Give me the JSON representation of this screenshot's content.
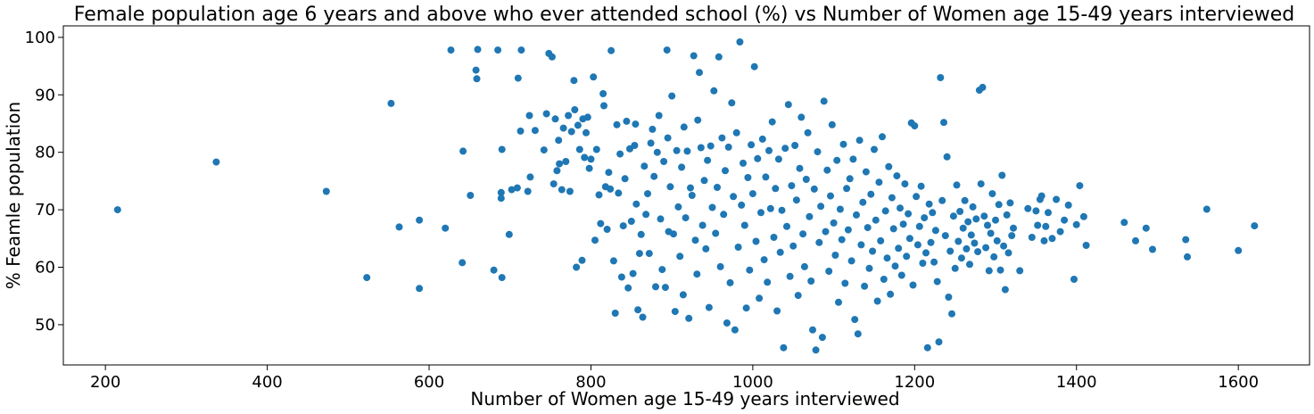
{
  "chart_data": {
    "type": "scatter",
    "title": "Female population age 6 years and above who ever attended school (%) vs Number of Women age 15-49 years interviewed",
    "xlabel": "Number of Women age 15-49 years interviewed",
    "ylabel": "% Feamle population",
    "xlim": [
      148,
      1688
    ],
    "ylim": [
      43,
      102
    ],
    "xticks": [
      200,
      400,
      600,
      800,
      1000,
      1200,
      1400,
      1600
    ],
    "yticks": [
      50,
      60,
      70,
      80,
      90,
      100
    ],
    "grid": false,
    "color": "#1f77b4",
    "points": [
      [
        215,
        70
      ],
      [
        337,
        78.3
      ],
      [
        473,
        73.2
      ],
      [
        523,
        58.2
      ],
      [
        553,
        88.5
      ],
      [
        563,
        67
      ],
      [
        588,
        56.3
      ],
      [
        588,
        68.2
      ],
      [
        620,
        66.8
      ],
      [
        627,
        97.8
      ],
      [
        641,
        60.8
      ],
      [
        642,
        80.2
      ],
      [
        651,
        72.5
      ],
      [
        658,
        94.3
      ],
      [
        659,
        92.8
      ],
      [
        660,
        97.9
      ],
      [
        680,
        59.5
      ],
      [
        685,
        97.8
      ],
      [
        689,
        73
      ],
      [
        690,
        80.5
      ],
      [
        689,
        72
      ],
      [
        690,
        58.2
      ],
      [
        699,
        65.7
      ],
      [
        702,
        73.5
      ],
      [
        709,
        73.8
      ],
      [
        710,
        92.9
      ],
      [
        713,
        83.7
      ],
      [
        714,
        97.8
      ],
      [
        722,
        73.2
      ],
      [
        724,
        86.4
      ],
      [
        725,
        75.7
      ],
      [
        731,
        83.8
      ],
      [
        742,
        80.4
      ],
      [
        745,
        86.7
      ],
      [
        748,
        97.2
      ],
      [
        752,
        96.6
      ],
      [
        754,
        74.5
      ],
      [
        756,
        85.8
      ],
      [
        758,
        76.8
      ],
      [
        760,
        82.1
      ],
      [
        761,
        78
      ],
      [
        764,
        73.5
      ],
      [
        766,
        84.2
      ],
      [
        769,
        78.4
      ],
      [
        772,
        86.4
      ],
      [
        774,
        73.2
      ],
      [
        776,
        83.6
      ],
      [
        779,
        92.5
      ],
      [
        780,
        87.4
      ],
      [
        782,
        60
      ],
      [
        784,
        84.7
      ],
      [
        786,
        80.5
      ],
      [
        789,
        61.2
      ],
      [
        790,
        85.8
      ],
      [
        792,
        79.1
      ],
      [
        794,
        83.4
      ],
      [
        796,
        86.1
      ],
      [
        798,
        77.2
      ],
      [
        800,
        78.8
      ],
      [
        803,
        93.1
      ],
      [
        805,
        64.7
      ],
      [
        807,
        80.5
      ],
      [
        810,
        72.6
      ],
      [
        812,
        67.6
      ],
      [
        815,
        90.2
      ],
      [
        816,
        88.1
      ],
      [
        818,
        74
      ],
      [
        820,
        66.6
      ],
      [
        822,
        76.5
      ],
      [
        824,
        73.6
      ],
      [
        825,
        97.7
      ],
      [
        828,
        61.1
      ],
      [
        830,
        52
      ],
      [
        832,
        84.8
      ],
      [
        834,
        72.9
      ],
      [
        836,
        79.7
      ],
      [
        838,
        58.3
      ],
      [
        840,
        67.2
      ],
      [
        842,
        75.4
      ],
      [
        844,
        85.4
      ],
      [
        846,
        56.4
      ],
      [
        848,
        80.6
      ],
      [
        850,
        68
      ],
      [
        852,
        58.9
      ],
      [
        854,
        81.2
      ],
      [
        855,
        84.9
      ],
      [
        856,
        71
      ],
      [
        858,
        52.6
      ],
      [
        860,
        62.4
      ],
      [
        862,
        65.7
      ],
      [
        864,
        51.3
      ],
      [
        866,
        77.6
      ],
      [
        868,
        69.2
      ],
      [
        870,
        72.8
      ],
      [
        872,
        62.4
      ],
      [
        874,
        81.6
      ],
      [
        876,
        84
      ],
      [
        878,
        75.8
      ],
      [
        880,
        56.6
      ],
      [
        882,
        80
      ],
      [
        884,
        86.4
      ],
      [
        886,
        68.4
      ],
      [
        888,
        59.6
      ],
      [
        890,
        78.4
      ],
      [
        892,
        56.5
      ],
      [
        894,
        97.8
      ],
      [
        895,
        82.5
      ],
      [
        896,
        66.2
      ],
      [
        898,
        74
      ],
      [
        900,
        89.8
      ],
      [
        902,
        65.8
      ],
      [
        904,
        52.3
      ],
      [
        906,
        80.3
      ],
      [
        908,
        70.5
      ],
      [
        910,
        61.9
      ],
      [
        912,
        77.4
      ],
      [
        914,
        55.2
      ],
      [
        915,
        84.4
      ],
      [
        917,
        68.6
      ],
      [
        919,
        80.2
      ],
      [
        921,
        51.1
      ],
      [
        923,
        73.8
      ],
      [
        925,
        72.5
      ],
      [
        927,
        96.8
      ],
      [
        929,
        64.7
      ],
      [
        931,
        58.8
      ],
      [
        932,
        85.6
      ],
      [
        934,
        93.9
      ],
      [
        936,
        80.8
      ],
      [
        938,
        67.3
      ],
      [
        940,
        75.1
      ],
      [
        942,
        63.2
      ],
      [
        944,
        78.6
      ],
      [
        946,
        53
      ],
      [
        948,
        81.1
      ],
      [
        950,
        70.4
      ],
      [
        952,
        90.7
      ],
      [
        954,
        65.9
      ],
      [
        956,
        73.9
      ],
      [
        958,
        96.6
      ],
      [
        960,
        60.1
      ],
      [
        962,
        82.5
      ],
      [
        964,
        69.2
      ],
      [
        966,
        76.8
      ],
      [
        968,
        50.3
      ],
      [
        970,
        80.9
      ],
      [
        972,
        57.3
      ],
      [
        974,
        88.6
      ],
      [
        976,
        72.3
      ],
      [
        978,
        49.1
      ],
      [
        980,
        83.4
      ],
      [
        982,
        63.5
      ],
      [
        984,
        99.2
      ],
      [
        986,
        70.8
      ],
      [
        988,
        78.1
      ],
      [
        990,
        67.3
      ],
      [
        992,
        52.9
      ],
      [
        994,
        75.6
      ],
      [
        996,
        59.5
      ],
      [
        998,
        81.3
      ],
      [
        1000,
        72.8
      ],
      [
        1002,
        94.9
      ],
      [
        1004,
        64.5
      ],
      [
        1006,
        78.9
      ],
      [
        1008,
        54.6
      ],
      [
        1010,
        69.5
      ],
      [
        1012,
        82.3
      ],
      [
        1014,
        61.3
      ],
      [
        1016,
        75.7
      ],
      [
        1018,
        57.4
      ],
      [
        1020,
        80.3
      ],
      [
        1022,
        70.2
      ],
      [
        1024,
        85.3
      ],
      [
        1026,
        65.2
      ],
      [
        1028,
        73.7
      ],
      [
        1030,
        52.4
      ],
      [
        1032,
        78.8
      ],
      [
        1034,
        62.6
      ],
      [
        1036,
        69.9
      ],
      [
        1038,
        46
      ],
      [
        1040,
        80.7
      ],
      [
        1042,
        67.1
      ],
      [
        1044,
        88.3
      ],
      [
        1046,
        58.4
      ],
      [
        1048,
        74.2
      ],
      [
        1050,
        63.7
      ],
      [
        1052,
        81.2
      ],
      [
        1054,
        71.7
      ],
      [
        1056,
        55.1
      ],
      [
        1058,
        77.2
      ],
      [
        1060,
        86.1
      ],
      [
        1062,
        65.8
      ],
      [
        1064,
        60.1
      ],
      [
        1066,
        75.3
      ],
      [
        1068,
        83.4
      ],
      [
        1070,
        68.8
      ],
      [
        1072,
        57.6
      ],
      [
        1074,
        49.1
      ],
      [
        1076,
        73.6
      ],
      [
        1078,
        45.6
      ],
      [
        1080,
        80.1
      ],
      [
        1082,
        64.3
      ],
      [
        1084,
        70.6
      ],
      [
        1086,
        47.8
      ],
      [
        1088,
        88.9
      ],
      [
        1090,
        66.2
      ],
      [
        1092,
        76.9
      ],
      [
        1094,
        59.3
      ],
      [
        1096,
        72.4
      ],
      [
        1098,
        84.8
      ],
      [
        1100,
        67.7
      ],
      [
        1102,
        62.1
      ],
      [
        1104,
        78.6
      ],
      [
        1106,
        53.9
      ],
      [
        1108,
        70.1
      ],
      [
        1110,
        64.8
      ],
      [
        1112,
        81.4
      ],
      [
        1114,
        57.2
      ],
      [
        1116,
        73.7
      ],
      [
        1118,
        66.5
      ],
      [
        1120,
        75.4
      ],
      [
        1122,
        61.1
      ],
      [
        1124,
        78.8
      ],
      [
        1126,
        50.9
      ],
      [
        1128,
        69.1
      ],
      [
        1130,
        48.4
      ],
      [
        1132,
        82.1
      ],
      [
        1134,
        63.9
      ],
      [
        1136,
        71.3
      ],
      [
        1138,
        56.7
      ],
      [
        1140,
        76.6
      ],
      [
        1142,
        66.9
      ],
      [
        1144,
        59.8
      ],
      [
        1146,
        72.7
      ],
      [
        1148,
        62.8
      ],
      [
        1150,
        80.5
      ],
      [
        1152,
        68.2
      ],
      [
        1154,
        54.1
      ],
      [
        1156,
        74.8
      ],
      [
        1158,
        64.6
      ],
      [
        1160,
        82.7
      ],
      [
        1162,
        57.9
      ],
      [
        1164,
        69.8
      ],
      [
        1166,
        61.6
      ],
      [
        1168,
        77.5
      ],
      [
        1170,
        55.3
      ],
      [
        1172,
        72.1
      ],
      [
        1174,
        66.7
      ],
      [
        1176,
        60.2
      ],
      [
        1178,
        75.9
      ],
      [
        1180,
        63.3
      ],
      [
        1182,
        70.3
      ],
      [
        1184,
        58.6
      ],
      [
        1186,
        67.5
      ],
      [
        1188,
        74.5
      ],
      [
        1190,
        61.9
      ],
      [
        1192,
        69.3
      ],
      [
        1194,
        65
      ],
      [
        1196,
        85.1
      ],
      [
        1198,
        56.9
      ],
      [
        1200,
        84.6
      ],
      [
        1202,
        72.3
      ],
      [
        1204,
        63.9
      ],
      [
        1206,
        67.1
      ],
      [
        1208,
        74.1
      ],
      [
        1210,
        60.7
      ],
      [
        1212,
        68.6
      ],
      [
        1214,
        62.5
      ],
      [
        1216,
        46
      ],
      [
        1218,
        71
      ],
      [
        1220,
        64.3
      ],
      [
        1222,
        69.5
      ],
      [
        1224,
        60.9
      ],
      [
        1226,
        66.4
      ],
      [
        1228,
        57.5
      ],
      [
        1230,
        47
      ],
      [
        1232,
        93
      ],
      [
        1234,
        71.6
      ],
      [
        1236,
        85.2
      ],
      [
        1238,
        65.5
      ],
      [
        1240,
        79.2
      ],
      [
        1242,
        54.8
      ],
      [
        1244,
        62.8
      ],
      [
        1246,
        51.9
      ],
      [
        1248,
        68.9
      ],
      [
        1250,
        59.8
      ],
      [
        1252,
        74.3
      ],
      [
        1254,
        64.5
      ],
      [
        1256,
        69.7
      ],
      [
        1258,
        61.6
      ],
      [
        1260,
        66.8
      ],
      [
        1262,
        71.6
      ],
      [
        1264,
        63.2
      ],
      [
        1266,
        67.9
      ],
      [
        1268,
        60.5
      ],
      [
        1270,
        65.6
      ],
      [
        1272,
        70.5
      ],
      [
        1274,
        64.2
      ],
      [
        1276,
        68.4
      ],
      [
        1278,
        62.7
      ],
      [
        1280,
        90.8
      ],
      [
        1282,
        74.5
      ],
      [
        1284,
        91.3
      ],
      [
        1286,
        68.9
      ],
      [
        1288,
        63.4
      ],
      [
        1290,
        67.3
      ],
      [
        1292,
        59.4
      ],
      [
        1294,
        65.9
      ],
      [
        1296,
        72.8
      ],
      [
        1298,
        61.8
      ],
      [
        1300,
        68.2
      ],
      [
        1302,
        64.6
      ],
      [
        1304,
        70.9
      ],
      [
        1306,
        59.5
      ],
      [
        1308,
        76
      ],
      [
        1310,
        63.7
      ],
      [
        1312,
        56.1
      ],
      [
        1314,
        69.1
      ],
      [
        1316,
        62.5
      ],
      [
        1318,
        71.2
      ],
      [
        1320,
        65.5
      ],
      [
        1322,
        66.8
      ],
      [
        1330,
        59.4
      ],
      [
        1340,
        70.2
      ],
      [
        1345,
        65.2
      ],
      [
        1350,
        69.8
      ],
      [
        1352,
        67.3
      ],
      [
        1355,
        71.8
      ],
      [
        1357,
        72.4
      ],
      [
        1360,
        64.6
      ],
      [
        1362,
        67.1
      ],
      [
        1365,
        69.5
      ],
      [
        1370,
        65
      ],
      [
        1375,
        71.8
      ],
      [
        1380,
        66.2
      ],
      [
        1385,
        68.2
      ],
      [
        1390,
        70.8
      ],
      [
        1397,
        57.9
      ],
      [
        1400,
        67.4
      ],
      [
        1404,
        74.2
      ],
      [
        1409,
        68.8
      ],
      [
        1412,
        63.8
      ],
      [
        1459,
        67.8
      ],
      [
        1473,
        64.6
      ],
      [
        1486,
        66.8
      ],
      [
        1494,
        63.1
      ],
      [
        1535,
        64.8
      ],
      [
        1537,
        61.8
      ],
      [
        1561,
        70.1
      ],
      [
        1600,
        62.9
      ],
      [
        1620,
        67.2
      ]
    ]
  }
}
